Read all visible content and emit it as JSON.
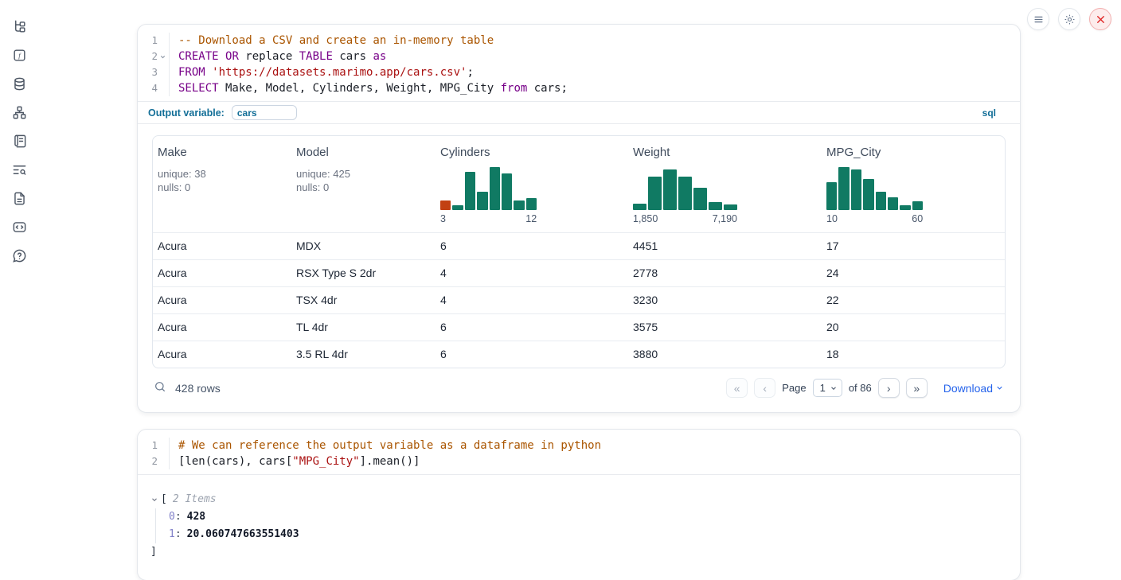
{
  "colors": {
    "keyword": "#770088",
    "string": "#aa1111",
    "comment": "#aa5500",
    "histogram_green": "#107a63",
    "histogram_orange": "#c24112",
    "accent_blue": "#126e97",
    "link_blue": "#2563eb",
    "danger_red": "#e02424"
  },
  "sidebar": {
    "icons": [
      "file-explorer",
      "functions",
      "datasources",
      "dependency-graph",
      "outline",
      "logs",
      "documentation",
      "snippets",
      "help"
    ]
  },
  "topbar": {
    "buttons": [
      "menu",
      "settings",
      "shutdown"
    ]
  },
  "cells": [
    {
      "language_badge": "sql",
      "output_variable_label": "Output variable:",
      "output_variable_value": "cars",
      "code_lines": [
        {
          "num": "1",
          "fold": false,
          "tokens": [
            {
              "t": "-- Download a CSV and create an in-memory table",
              "c": "com"
            }
          ]
        },
        {
          "num": "2",
          "fold": true,
          "tokens": [
            {
              "t": "CREATE",
              "c": "kw"
            },
            {
              "t": " ",
              "c": ""
            },
            {
              "t": "OR",
              "c": "kw"
            },
            {
              "t": " replace ",
              "c": ""
            },
            {
              "t": "TABLE",
              "c": "kw"
            },
            {
              "t": " cars ",
              "c": ""
            },
            {
              "t": "as",
              "c": "kw"
            }
          ]
        },
        {
          "num": "3",
          "fold": false,
          "tokens": [
            {
              "t": "FROM",
              "c": "kw"
            },
            {
              "t": " ",
              "c": ""
            },
            {
              "t": "'https://datasets.marimo.app/cars.csv'",
              "c": "str"
            },
            {
              "t": ";",
              "c": ""
            }
          ]
        },
        {
          "num": "4",
          "fold": false,
          "tokens": [
            {
              "t": "SELECT",
              "c": "kw"
            },
            {
              "t": " Make, Model, Cylinders, Weight, MPG_City ",
              "c": ""
            },
            {
              "t": "from",
              "c": "kw"
            },
            {
              "t": " cars;",
              "c": ""
            }
          ]
        }
      ],
      "table": {
        "columns": [
          {
            "name": "Make",
            "stats": [
              "unique: 38",
              "nulls: 0"
            ]
          },
          {
            "name": "Model",
            "stats": [
              "unique: 425",
              "nulls: 0"
            ]
          },
          {
            "name": "Cylinders",
            "histogram": {
              "bars": [
                0.22,
                0.12,
                0.88,
                0.42,
                1.0,
                0.85,
                0.22,
                0.28
              ],
              "first_bar_orange": true,
              "min_label": "3",
              "max_label": "12"
            }
          },
          {
            "name": "Weight",
            "histogram": {
              "bars": [
                0.14,
                0.78,
                0.95,
                0.78,
                0.52,
                0.18,
                0.13
              ],
              "first_bar_orange": false,
              "min_label": "1,850",
              "max_label": "7,190"
            }
          },
          {
            "name": "MPG_City",
            "histogram": {
              "bars": [
                0.65,
                1.0,
                0.95,
                0.72,
                0.42,
                0.3,
                0.12,
                0.2
              ],
              "first_bar_orange": false,
              "min_label": "10",
              "max_label": "60"
            }
          }
        ],
        "rows": [
          [
            "Acura",
            "MDX",
            "6",
            "4451",
            "17"
          ],
          [
            "Acura",
            "RSX Type S 2dr",
            "4",
            "2778",
            "24"
          ],
          [
            "Acura",
            "TSX 4dr",
            "4",
            "3230",
            "22"
          ],
          [
            "Acura",
            "TL 4dr",
            "6",
            "3575",
            "20"
          ],
          [
            "Acura",
            "3.5 RL 4dr",
            "6",
            "3880",
            "18"
          ]
        ],
        "footer": {
          "row_count": "428 rows",
          "page_label": "Page",
          "page_value": "1",
          "of_label": "of 86",
          "first_glyph": "«",
          "prev_glyph": "‹",
          "next_glyph": "›",
          "last_glyph": "»",
          "download_label": "Download"
        }
      }
    },
    {
      "code_lines": [
        {
          "num": "1",
          "fold": false,
          "tokens": [
            {
              "t": "# We can reference the output variable as a dataframe in python",
              "c": "com"
            }
          ]
        },
        {
          "num": "2",
          "fold": false,
          "tokens": [
            {
              "t": "[len(cars), cars[",
              "c": ""
            },
            {
              "t": "\"MPG_City\"",
              "c": "str"
            },
            {
              "t": "].mean()]",
              "c": ""
            }
          ]
        }
      ],
      "output_tree": {
        "open_bracket": "[",
        "items_label": "2 Items",
        "entries": [
          {
            "key": "0",
            "sep": ":",
            "value": "428"
          },
          {
            "key": "1",
            "sep": ":",
            "value": "20.060747663551403"
          }
        ],
        "close_bracket": "]"
      }
    }
  ]
}
